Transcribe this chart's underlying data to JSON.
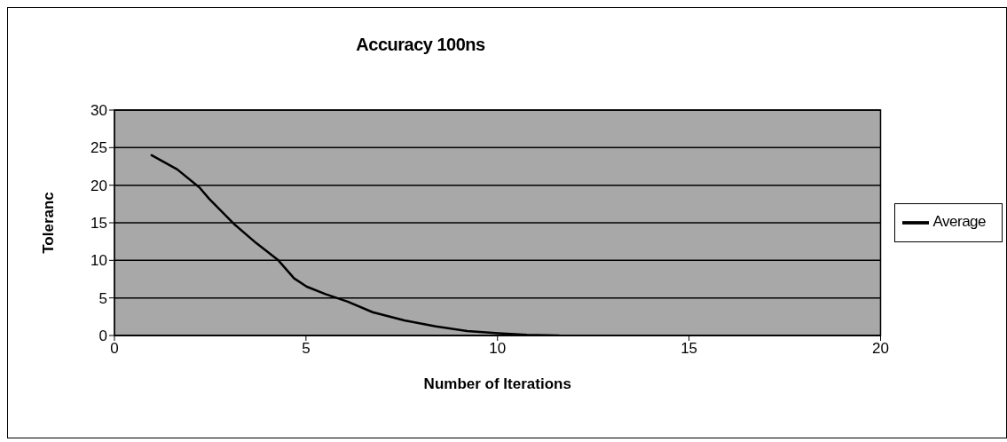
{
  "chart_data": {
    "type": "line",
    "title": "Accuracy 100ns",
    "xlabel": "Number of Iterations",
    "ylabel": "Toleranc",
    "series": [
      {
        "name": "Average",
        "color": "#000000",
        "x": [
          0.97,
          1.64,
          2.22,
          2.47,
          3.13,
          3.7,
          4.28,
          4.69,
          5.02,
          5.51,
          6.09,
          6.74,
          7.57,
          8.39,
          9.21,
          10.03,
          10.77,
          11.6
        ],
        "values": [
          24.0,
          22.1,
          19.7,
          18.2,
          14.8,
          12.3,
          10.0,
          7.6,
          6.5,
          5.5,
          4.5,
          3.1,
          2.0,
          1.2,
          0.6,
          0.3,
          0.1,
          0
        ]
      }
    ],
    "xlim": [
      0,
      20
    ],
    "xticks": [
      0,
      5,
      10,
      15,
      20
    ],
    "ylim": [
      0,
      30
    ],
    "yticks": [
      0,
      5,
      10,
      15,
      20,
      25,
      30
    ],
    "grid": "y",
    "legend": "right",
    "marker": "none",
    "line_style": "solid"
  }
}
